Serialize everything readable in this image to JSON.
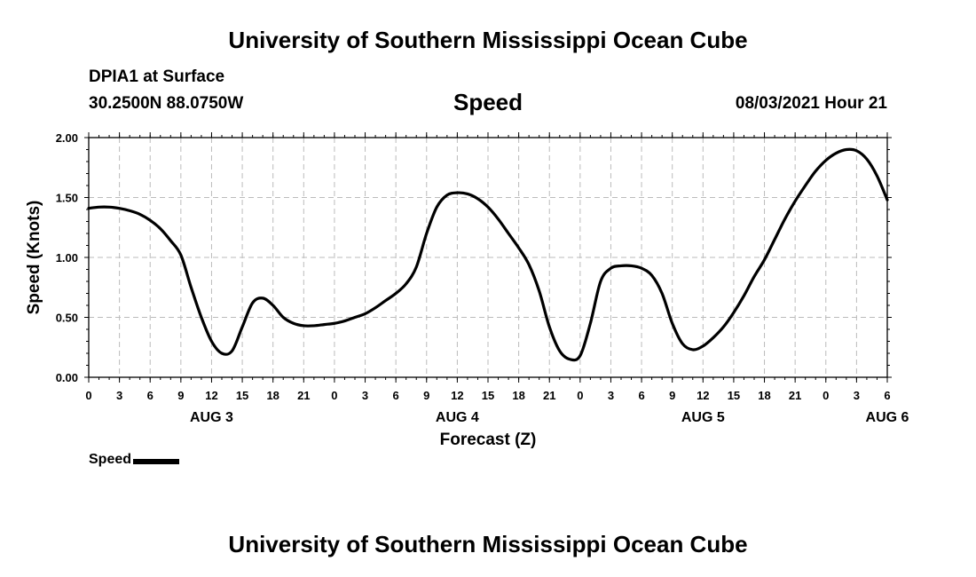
{
  "header": {
    "title": "University of Southern Mississippi Ocean Cube",
    "station_name": "DPIA1 at Surface",
    "station_coords": "30.2500N  88.0750W",
    "variable": "Speed",
    "run_time": "08/03/2021 Hour 21"
  },
  "footer": {
    "title": "University of Southern Mississippi Ocean Cube"
  },
  "legend": {
    "label": "Speed",
    "color": "#000000"
  },
  "chart_data": {
    "type": "line",
    "title": "Speed",
    "xlabel": "Forecast (Z)",
    "ylabel": "Speed (Knots)",
    "xlim": [
      0,
      78
    ],
    "ylim": [
      0,
      2
    ],
    "grid": true,
    "legend_position": "bottom-left",
    "x_unit": "hours from AUG 3 00Z",
    "x_ticks": [
      {
        "x": 0,
        "label": "0"
      },
      {
        "x": 3,
        "label": "3"
      },
      {
        "x": 6,
        "label": "6"
      },
      {
        "x": 9,
        "label": "9"
      },
      {
        "x": 12,
        "label": "12"
      },
      {
        "x": 15,
        "label": "15"
      },
      {
        "x": 18,
        "label": "18"
      },
      {
        "x": 21,
        "label": "21"
      },
      {
        "x": 24,
        "label": "0"
      },
      {
        "x": 27,
        "label": "3"
      },
      {
        "x": 30,
        "label": "6"
      },
      {
        "x": 33,
        "label": "9"
      },
      {
        "x": 36,
        "label": "12"
      },
      {
        "x": 39,
        "label": "15"
      },
      {
        "x": 42,
        "label": "18"
      },
      {
        "x": 45,
        "label": "21"
      },
      {
        "x": 48,
        "label": "0"
      },
      {
        "x": 51,
        "label": "3"
      },
      {
        "x": 54,
        "label": "6"
      },
      {
        "x": 57,
        "label": "9"
      },
      {
        "x": 60,
        "label": "12"
      },
      {
        "x": 63,
        "label": "15"
      },
      {
        "x": 66,
        "label": "18"
      },
      {
        "x": 69,
        "label": "21"
      },
      {
        "x": 72,
        "label": "0"
      },
      {
        "x": 75,
        "label": "3"
      },
      {
        "x": 78,
        "label": "6"
      }
    ],
    "date_labels": [
      {
        "x": 12,
        "label": "AUG 3"
      },
      {
        "x": 36,
        "label": "AUG 4"
      },
      {
        "x": 60,
        "label": "AUG 5"
      },
      {
        "x": 78,
        "label": "AUG 6"
      }
    ],
    "y_ticks": [
      {
        "y": 0,
        "label": "0.00"
      },
      {
        "y": 0.5,
        "label": "0.50"
      },
      {
        "y": 1,
        "label": "1.00"
      },
      {
        "y": 1.5,
        "label": "1.50"
      },
      {
        "y": 2,
        "label": "2.00"
      }
    ],
    "series": [
      {
        "name": "Speed",
        "x": [
          0,
          1,
          2,
          3,
          4,
          5,
          6,
          7,
          8,
          9,
          10,
          11,
          12,
          13,
          14,
          15,
          16,
          17,
          18,
          19,
          20,
          21,
          22,
          23,
          24,
          25,
          26,
          27,
          28,
          29,
          30,
          31,
          32,
          33,
          34,
          35,
          36,
          37,
          38,
          39,
          40,
          41,
          42,
          43,
          44,
          45,
          46,
          47,
          48,
          49,
          50,
          51,
          52,
          53,
          54,
          55,
          56,
          57,
          58,
          59,
          60,
          61,
          62,
          63,
          64,
          65,
          66,
          67,
          68,
          69,
          70,
          71,
          72,
          73,
          74,
          75,
          76,
          77,
          78
        ],
        "values": [
          1.41,
          1.42,
          1.42,
          1.41,
          1.39,
          1.36,
          1.31,
          1.24,
          1.14,
          1.02,
          0.75,
          0.5,
          0.3,
          0.2,
          0.22,
          0.42,
          0.62,
          0.66,
          0.6,
          0.5,
          0.45,
          0.43,
          0.43,
          0.44,
          0.45,
          0.47,
          0.5,
          0.53,
          0.58,
          0.64,
          0.7,
          0.78,
          0.92,
          1.2,
          1.42,
          1.52,
          1.54,
          1.53,
          1.49,
          1.42,
          1.32,
          1.2,
          1.08,
          0.94,
          0.72,
          0.42,
          0.22,
          0.15,
          0.18,
          0.45,
          0.8,
          0.91,
          0.93,
          0.93,
          0.91,
          0.85,
          0.7,
          0.45,
          0.28,
          0.23,
          0.26,
          0.33,
          0.42,
          0.54,
          0.68,
          0.84,
          0.98,
          1.15,
          1.32,
          1.47,
          1.6,
          1.72,
          1.81,
          1.87,
          1.9,
          1.89,
          1.82,
          1.68,
          1.48
        ]
      }
    ]
  }
}
